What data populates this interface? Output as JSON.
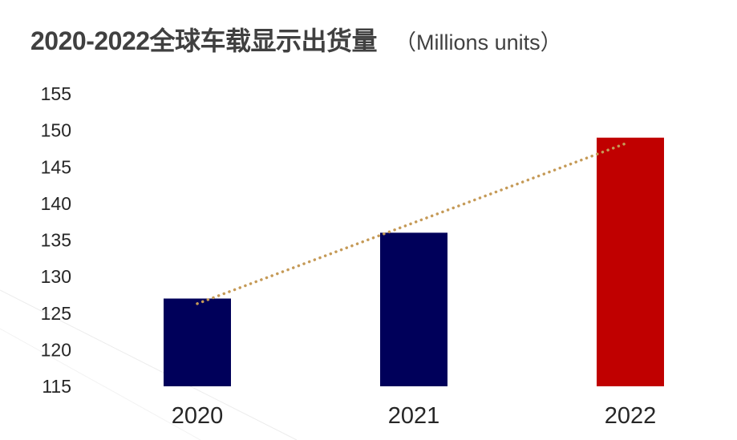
{
  "chart_data": {
    "type": "bar",
    "title": "2020-2022全球车载显示出货量",
    "unit_label": "（Millions units）",
    "categories": [
      "2020",
      "2021",
      "2022"
    ],
    "values": [
      127,
      136,
      149
    ],
    "bar_colors": [
      "#00005a",
      "#00005a",
      "#c00000"
    ],
    "ylim": [
      115,
      155
    ],
    "yticks": [
      115,
      120,
      125,
      130,
      135,
      140,
      145,
      150,
      155
    ],
    "grid": false,
    "trendline": {
      "style": "dotted",
      "color": "#c59a57",
      "start_value": 126.3,
      "end_value": 148.2
    }
  }
}
